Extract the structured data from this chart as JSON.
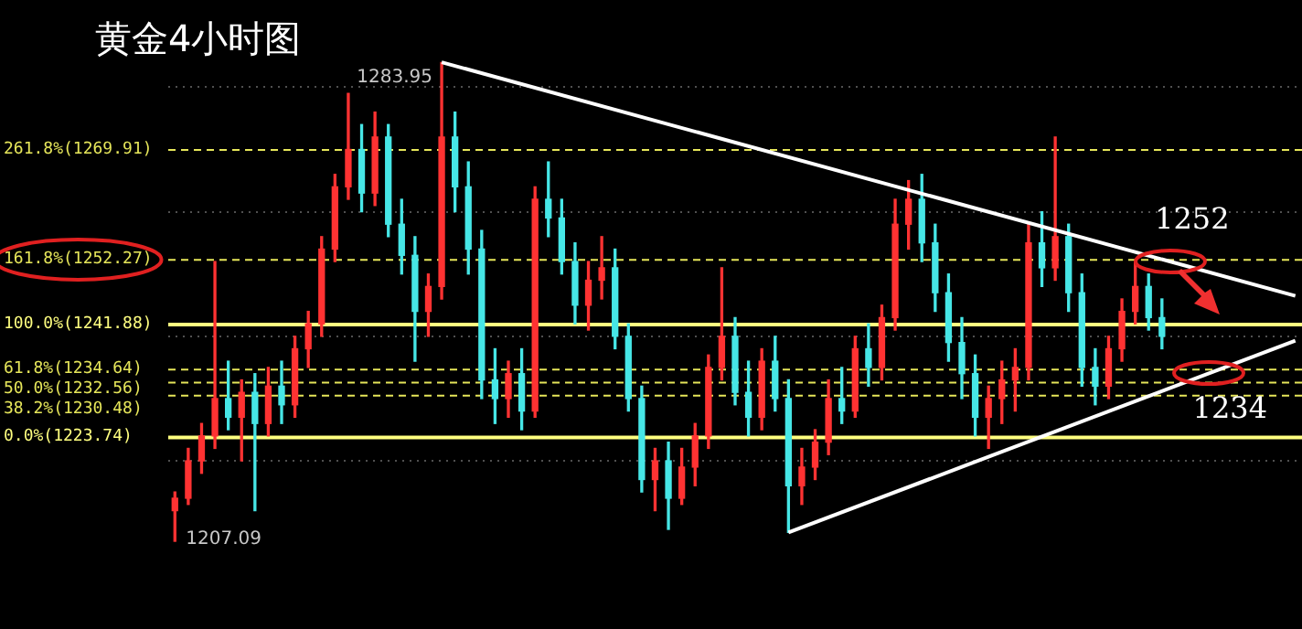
{
  "chart_data": {
    "type": "candlestick",
    "title": "黄金4小时图",
    "categories": [
      null,
      null,
      null,
      null,
      null,
      null,
      null,
      null,
      null,
      null,
      null,
      null,
      null,
      null,
      null,
      null,
      null,
      null,
      null,
      null,
      null,
      null,
      null,
      null,
      null,
      null,
      null,
      null,
      null,
      null,
      null,
      null,
      null,
      null,
      null,
      null,
      null,
      null,
      null,
      null,
      null,
      null,
      null,
      null,
      null,
      null,
      null,
      null,
      null,
      null,
      null,
      null,
      null,
      null,
      null,
      null,
      null,
      null,
      null,
      null,
      null,
      null,
      null,
      null,
      null,
      null,
      null,
      null,
      null,
      null,
      null,
      null,
      null,
      null,
      null,
      null,
      null,
      null,
      null,
      null,
      null,
      null,
      null,
      null,
      null
    ],
    "ohlc": [
      [
        1212,
        1215,
        1207.09,
        1214
      ],
      [
        1214,
        1222,
        1213,
        1220
      ],
      [
        1220,
        1226,
        1218,
        1224
      ],
      [
        1224,
        1252,
        1222,
        1230
      ],
      [
        1230,
        1236,
        1225,
        1227
      ],
      [
        1227,
        1233,
        1220,
        1231
      ],
      [
        1231,
        1234,
        1212,
        1226
      ],
      [
        1226,
        1235,
        1224,
        1232
      ],
      [
        1232,
        1236,
        1226,
        1229
      ],
      [
        1229,
        1240,
        1227,
        1238
      ],
      [
        1238,
        1244,
        1235,
        1242
      ],
      [
        1242,
        1256,
        1240,
        1254
      ],
      [
        1254,
        1266,
        1252,
        1264
      ],
      [
        1264,
        1279,
        1262,
        1270
      ],
      [
        1270,
        1274,
        1260,
        1263
      ],
      [
        1263,
        1276,
        1261,
        1272
      ],
      [
        1272,
        1274,
        1256,
        1258
      ],
      [
        1258,
        1262,
        1250,
        1253
      ],
      [
        1253,
        1256,
        1236,
        1244
      ],
      [
        1244,
        1250,
        1240,
        1248
      ],
      [
        1248,
        1283.95,
        1246,
        1272
      ],
      [
        1272,
        1276,
        1260,
        1264
      ],
      [
        1264,
        1268,
        1250,
        1254
      ],
      [
        1254,
        1257,
        1230,
        1233
      ],
      [
        1233,
        1238,
        1226,
        1230
      ],
      [
        1230,
        1236,
        1227,
        1234
      ],
      [
        1234,
        1238,
        1225,
        1228
      ],
      [
        1228,
        1264,
        1227,
        1262
      ],
      [
        1262,
        1268,
        1256,
        1259
      ],
      [
        1259,
        1262,
        1250,
        1252
      ],
      [
        1252,
        1255,
        1242,
        1245
      ],
      [
        1245,
        1252,
        1241,
        1249
      ],
      [
        1249,
        1256,
        1246,
        1251
      ],
      [
        1251,
        1254,
        1238,
        1240
      ],
      [
        1240,
        1242,
        1228,
        1230
      ],
      [
        1230,
        1232,
        1215,
        1217
      ],
      [
        1217,
        1222,
        1212,
        1220
      ],
      [
        1220,
        1223,
        1209,
        1214
      ],
      [
        1214,
        1222,
        1213,
        1219
      ],
      [
        1219,
        1226,
        1216,
        1224
      ],
      [
        1224,
        1237,
        1222,
        1235
      ],
      [
        1235,
        1251,
        1233,
        1240
      ],
      [
        1240,
        1243,
        1229,
        1231
      ],
      [
        1231,
        1236,
        1224,
        1227
      ],
      [
        1227,
        1238,
        1225,
        1236
      ],
      [
        1236,
        1240,
        1228,
        1230
      ],
      [
        1230,
        1233,
        1208.5,
        1216
      ],
      [
        1216,
        1222,
        1213,
        1219
      ],
      [
        1219,
        1225,
        1217,
        1223
      ],
      [
        1223,
        1233,
        1221,
        1230
      ],
      [
        1230,
        1235,
        1226,
        1228
      ],
      [
        1228,
        1240,
        1227,
        1238
      ],
      [
        1238,
        1242,
        1232,
        1235
      ],
      [
        1235,
        1245,
        1233,
        1243
      ],
      [
        1243,
        1262,
        1241,
        1258
      ],
      [
        1258,
        1265,
        1254,
        1262
      ],
      [
        1262,
        1266,
        1252,
        1255
      ],
      [
        1255,
        1258,
        1244,
        1247
      ],
      [
        1247,
        1250,
        1236,
        1239
      ],
      [
        1239,
        1243,
        1230,
        1234
      ],
      [
        1234,
        1237,
        1224,
        1227
      ],
      [
        1227,
        1232,
        1222,
        1230
      ],
      [
        1230,
        1236,
        1226,
        1233
      ],
      [
        1233,
        1238,
        1228,
        1235
      ],
      [
        1235,
        1258,
        1233,
        1255
      ],
      [
        1255,
        1260,
        1248,
        1251
      ],
      [
        1251,
        1272,
        1249,
        1256
      ],
      [
        1256,
        1258,
        1244,
        1247
      ],
      [
        1247,
        1250,
        1232,
        1235
      ],
      [
        1235,
        1238,
        1229,
        1232
      ],
      [
        1232,
        1240,
        1230,
        1238
      ],
      [
        1238,
        1246,
        1236,
        1244
      ],
      [
        1244,
        1252,
        1242,
        1248
      ],
      [
        1248,
        1250,
        1241,
        1243
      ],
      [
        1243,
        1246,
        1238,
        1240
      ],
      null,
      null,
      null,
      null,
      null,
      null,
      null,
      null,
      null,
      null
    ],
    "series": [
      {
        "type": "line",
        "color": "#ffffff",
        "values": [
          null,
          null,
          null,
          null,
          null,
          null,
          null,
          null,
          null,
          null,
          null,
          null,
          null,
          null,
          null,
          null,
          null,
          null,
          null,
          null,
          1284,
          null,
          null,
          null,
          null,
          null,
          null,
          null,
          null,
          null,
          null,
          null,
          null,
          null,
          null,
          null,
          null,
          null,
          null,
          null,
          null,
          null,
          null,
          null,
          null,
          null,
          null,
          null,
          null,
          null,
          null,
          null,
          null,
          null,
          null,
          null,
          null,
          null,
          null,
          null,
          null,
          null,
          null,
          null,
          null,
          null,
          null,
          null,
          null,
          null,
          null,
          null,
          null,
          null,
          null,
          null,
          null,
          null,
          null,
          null,
          null,
          null,
          null,
          null,
          1246.5
        ]
      },
      {
        "type": "line",
        "color": "#ffffff",
        "values": [
          null,
          null,
          null,
          null,
          null,
          null,
          null,
          null,
          null,
          null,
          null,
          null,
          null,
          null,
          null,
          null,
          null,
          null,
          null,
          null,
          null,
          null,
          null,
          null,
          null,
          null,
          null,
          null,
          null,
          null,
          null,
          null,
          null,
          null,
          null,
          null,
          null,
          null,
          null,
          null,
          null,
          null,
          null,
          null,
          null,
          null,
          1208.5,
          null,
          null,
          null,
          null,
          null,
          null,
          null,
          null,
          null,
          null,
          null,
          null,
          null,
          null,
          null,
          null,
          null,
          null,
          null,
          null,
          null,
          null,
          null,
          null,
          null,
          null,
          null,
          null,
          null,
          null,
          null,
          null,
          null,
          null,
          null,
          null,
          null,
          1239.3
        ]
      }
    ],
    "ylim": [
      1193,
      1294
    ],
    "yticks": [
      1220,
      1240,
      1260,
      1280
    ],
    "grid": "y",
    "tick_labels": false,
    "legend": false,
    "ref_lines": [
      {
        "axis": "y",
        "value": 1269.91,
        "label": "261.8%(1269.91)",
        "color": "#e6e65a",
        "line_style": "dashed"
      },
      {
        "axis": "y",
        "value": 1252.27,
        "label": "161.8%(1252.27)",
        "color": "#e6e65a",
        "line_style": "dashed"
      },
      {
        "axis": "y",
        "value": 1241.88,
        "label": "100.0%(1241.88)",
        "color": "#ffff80",
        "line_style": "solid"
      },
      {
        "axis": "y",
        "value": 1234.64,
        "label": "61.8%(1234.64)",
        "color": "#e6e65a",
        "line_style": "dashed"
      },
      {
        "axis": "y",
        "value": 1232.56,
        "label": "50.0%(1232.56)",
        "color": "#e6e65a",
        "line_style": "dashed"
      },
      {
        "axis": "y",
        "value": 1230.48,
        "label": "38.2%(1230.48)",
        "color": "#e6e65a",
        "line_style": "dashed"
      },
      {
        "axis": "y",
        "value": 1223.74,
        "label": "0.0%(1223.74)",
        "color": "#ffff80",
        "line_style": "solid"
      }
    ],
    "annotations": [
      "1283.95",
      "1207.09",
      {
        "text": "1252",
        "y": 1252
      },
      {
        "text": "1234",
        "y": 1234
      }
    ]
  }
}
